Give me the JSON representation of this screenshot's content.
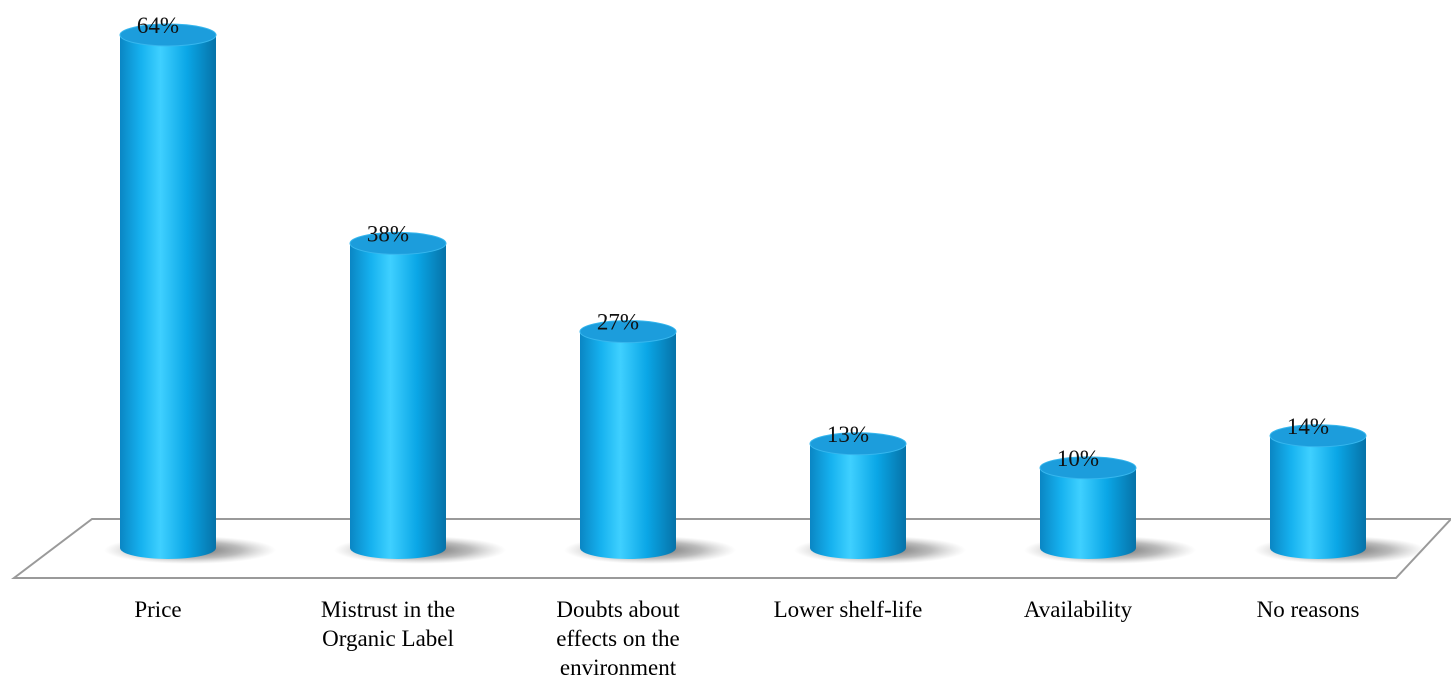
{
  "chart_data": {
    "type": "bar",
    "style": "3d-cylinder",
    "categories": [
      [
        "Price"
      ],
      [
        "Mistrust in the",
        "Organic Label"
      ],
      [
        "Doubts about",
        "effects on the",
        "environment"
      ],
      [
        "Lower shelf-life"
      ],
      [
        "Availability"
      ],
      [
        "No reasons"
      ]
    ],
    "values": [
      64,
      38,
      27,
      13,
      10,
      14
    ],
    "value_labels": [
      "64%",
      "38%",
      "27%",
      "13%",
      "10%",
      "14%"
    ],
    "value_unit": "%",
    "ylim": [
      0,
      64
    ],
    "title": "",
    "xlabel": "",
    "ylabel": "",
    "grid": false,
    "legend": "none",
    "colors": {
      "bar": "#0aa6e6",
      "bar_light": "#3fd0ff",
      "bar_dark": "#0778b0",
      "bar_top": "#1c9ddc",
      "floor_stroke": "#9a9a9a",
      "shadow": "#5a5a5a"
    }
  }
}
